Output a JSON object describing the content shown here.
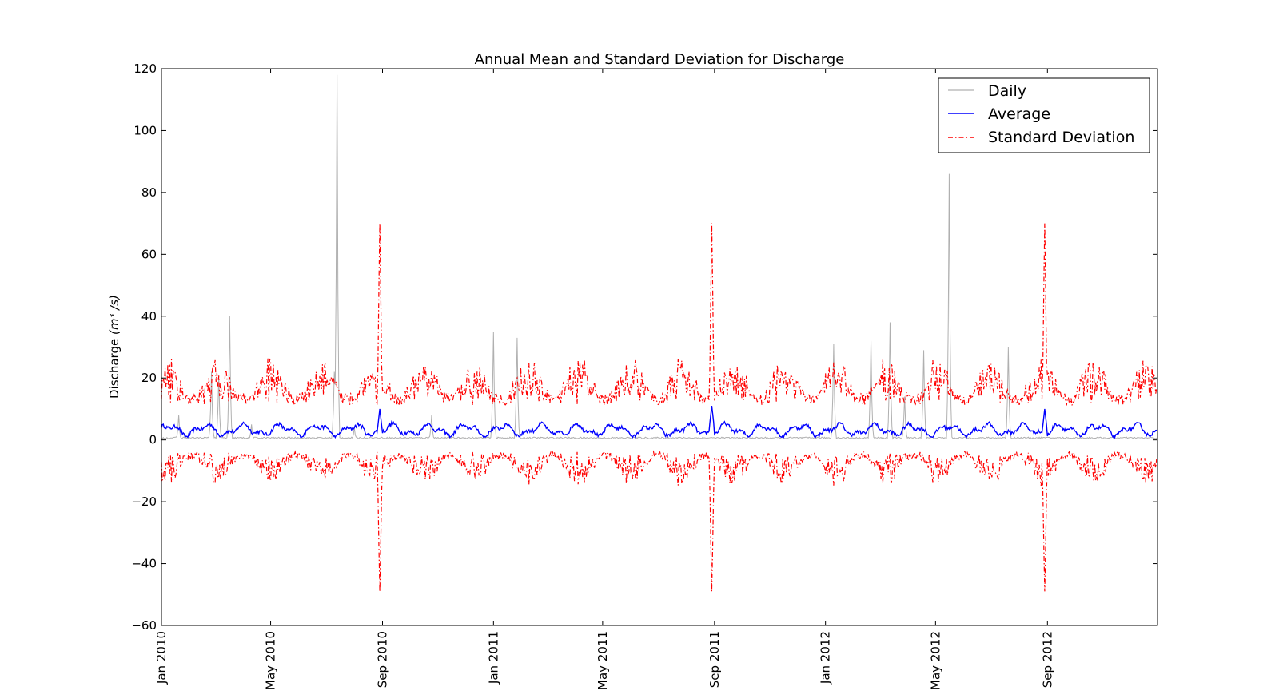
{
  "chart_data": {
    "type": "line",
    "title": "Annual Mean and Standard Deviation for Discharge",
    "ylabel": "Discharge",
    "ylabel_unit": "(m³ /s)",
    "xlabel": "",
    "ylim": [
      -60,
      120
    ],
    "yticks": [
      -60,
      -40,
      -20,
      0,
      20,
      40,
      60,
      80,
      100,
      120
    ],
    "ytick_labels": [
      "−60",
      "−40",
      "−20",
      "0",
      "20",
      "40",
      "60",
      "80",
      "100",
      "120"
    ],
    "xlim": [
      "2010-01-01",
      "2012-12-31"
    ],
    "xticks": [
      "2010-01-01",
      "2010-05-01",
      "2010-09-01",
      "2011-01-01",
      "2011-05-01",
      "2011-09-01",
      "2012-01-01",
      "2012-05-01",
      "2012-09-01"
    ],
    "xtick_labels": [
      "Jan 2010",
      "May 2010",
      "Sep 2010",
      "Jan 2011",
      "May 2011",
      "Sep 2011",
      "Jan 2012",
      "May 2012",
      "Sep 2012"
    ],
    "grid": false,
    "legend_position": "top-right",
    "colors": {
      "daily": "#b0b0b0",
      "average": "#0000ff",
      "std": "#ff0000"
    },
    "series": [
      {
        "name": "Daily",
        "style": "solid",
        "baseline": 0.4,
        "peaks": [
          {
            "date": "2010-01-20",
            "value": 8
          },
          {
            "date": "2010-02-25",
            "value": 22
          },
          {
            "date": "2010-03-05",
            "value": 21
          },
          {
            "date": "2010-03-17",
            "value": 40
          },
          {
            "date": "2010-04-10",
            "value": 5
          },
          {
            "date": "2010-07-10",
            "value": 22
          },
          {
            "date": "2010-07-13",
            "value": 118
          },
          {
            "date": "2010-08-01",
            "value": 4
          },
          {
            "date": "2010-10-25",
            "value": 8
          },
          {
            "date": "2011-01-01",
            "value": 35
          },
          {
            "date": "2011-01-27",
            "value": 33
          },
          {
            "date": "2012-01-10",
            "value": 31
          },
          {
            "date": "2012-02-20",
            "value": 32
          },
          {
            "date": "2012-03-12",
            "value": 38
          },
          {
            "date": "2012-03-28",
            "value": 14
          },
          {
            "date": "2012-04-18",
            "value": 29
          },
          {
            "date": "2012-05-16",
            "value": 86
          },
          {
            "date": "2012-07-20",
            "value": 30
          }
        ]
      },
      {
        "name": "Average",
        "style": "solid",
        "mean_level": 3.2,
        "notable": [
          {
            "date": "2010-08-29",
            "value": 10
          },
          {
            "date": "2011-08-29",
            "value": 11
          },
          {
            "date": "2012-08-29",
            "value": 10
          }
        ]
      },
      {
        "name": "Standard Deviation",
        "style": "dashdot",
        "upper_typical_range": [
          8,
          28
        ],
        "lower_typical_range": [
          -19,
          -2
        ],
        "spikes": [
          {
            "date": "2010-08-29",
            "upper": 70,
            "lower": -49
          },
          {
            "date": "2011-08-29",
            "upper": 70,
            "lower": -49
          },
          {
            "date": "2012-08-29",
            "upper": 70,
            "lower": -49
          }
        ]
      }
    ]
  }
}
